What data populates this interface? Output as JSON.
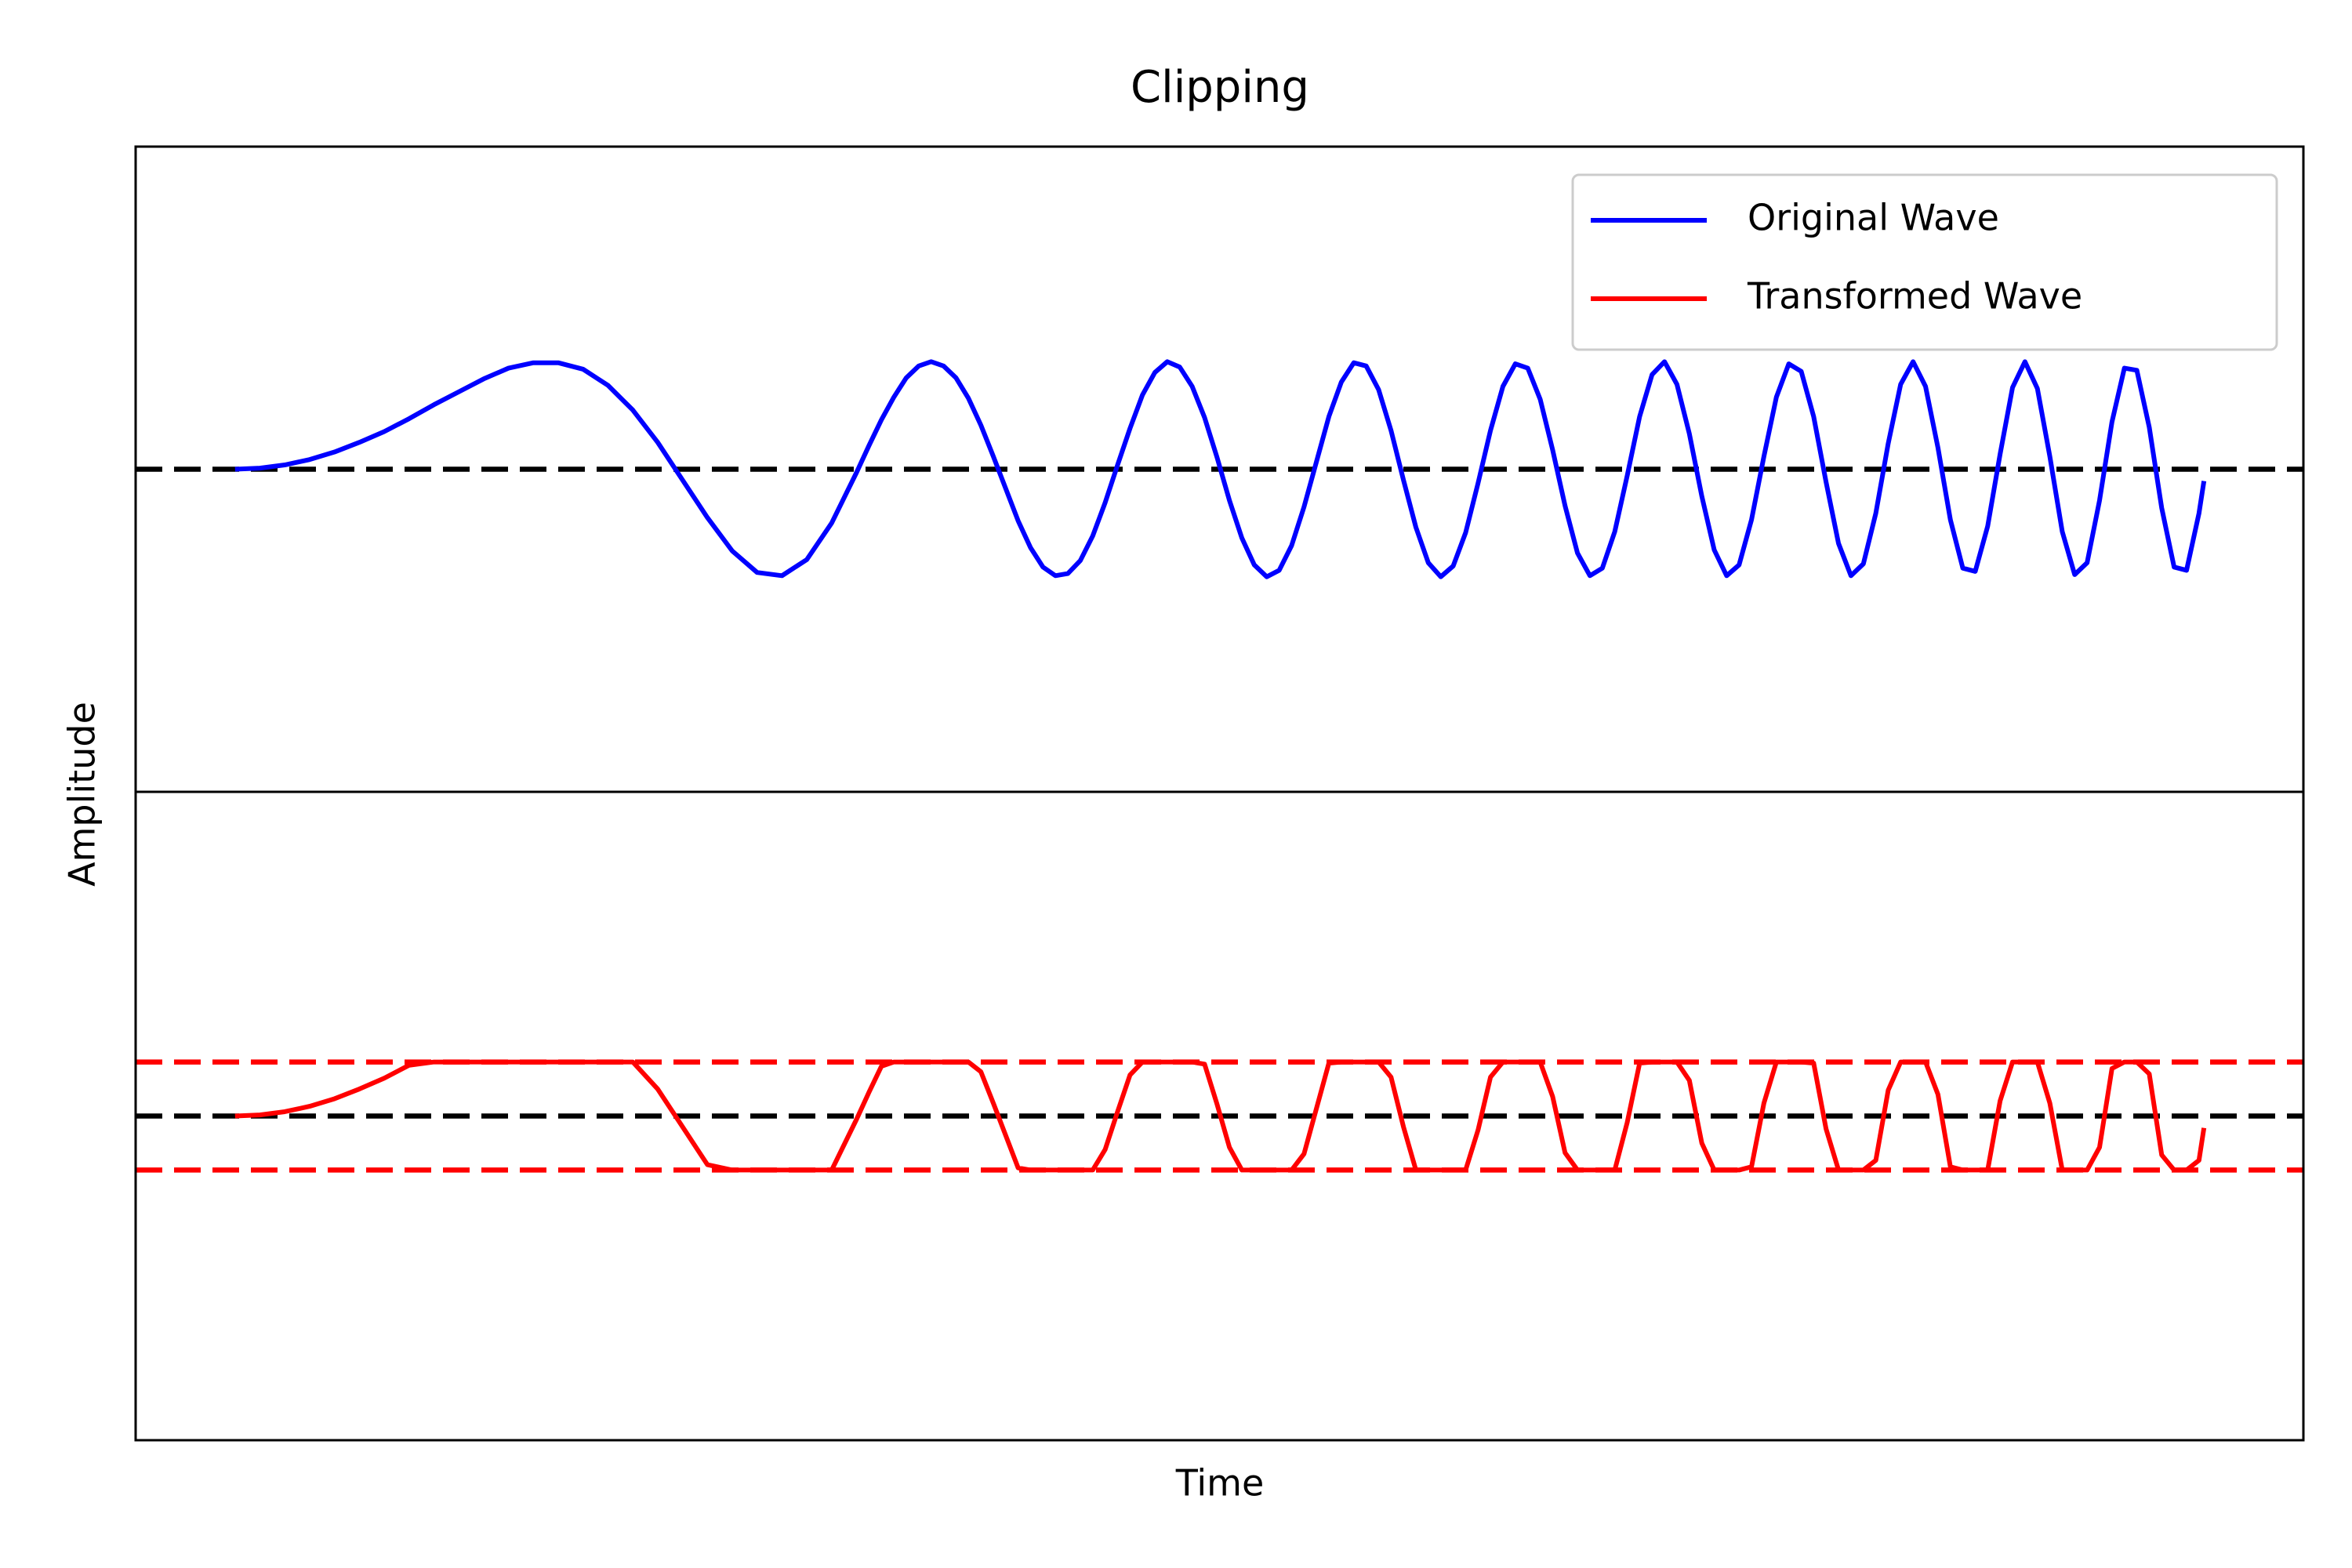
{
  "chart_data": [
    {
      "type": "line",
      "title": "Clipping",
      "ylabel": "Amplitude",
      "legend": "upper right",
      "x": [
        0,
        0.1,
        0.2,
        0.3,
        0.4,
        0.5,
        0.6,
        0.7,
        0.8,
        0.9,
        1.0,
        1.1,
        1.2,
        1.3,
        1.4,
        1.5,
        1.6,
        1.7,
        1.8,
        1.9,
        2.0,
        2.1,
        2.2,
        2.3,
        2.4,
        2.5,
        2.55,
        2.6,
        2.65,
        2.7,
        2.75,
        2.8,
        2.85,
        2.9,
        2.95,
        3.0,
        3.05,
        3.1,
        3.15,
        3.2,
        3.25,
        3.3,
        3.35,
        3.4,
        3.45,
        3.5,
        3.55,
        3.6,
        3.65,
        3.7,
        3.75,
        3.8,
        3.85,
        3.9,
        3.95,
        4.0,
        4.05,
        4.1,
        4.15,
        4.2,
        4.25,
        4.3,
        4.35,
        4.4,
        4.45,
        4.5,
        4.55,
        4.6,
        4.65,
        4.7,
        4.75,
        4.8,
        4.85,
        4.9,
        4.95,
        5.0,
        5.05,
        5.1,
        5.15,
        5.2,
        5.25,
        5.3,
        5.35,
        5.4,
        5.45,
        5.5,
        5.55,
        5.6,
        5.65,
        5.7,
        5.75,
        5.8,
        5.85,
        5.9,
        5.95,
        6.0,
        6.05,
        6.1,
        6.15,
        6.2,
        6.25,
        6.3,
        6.35,
        6.4,
        6.45,
        6.5,
        6.55,
        6.6,
        6.65,
        6.7,
        6.75,
        6.8,
        6.85,
        6.9,
        6.95,
        7.0,
        7.05,
        7.1,
        7.15,
        7.2,
        7.25,
        7.3,
        7.35,
        7.4,
        7.45,
        7.5,
        7.55,
        7.6,
        7.65,
        7.7,
        7.75,
        7.8,
        7.85,
        7.9,
        7.92
      ],
      "series": [
        {
          "name": "Original Wave",
          "color": "#0000ff",
          "values": [
            0,
            0.01,
            0.04,
            0.09,
            0.16,
            0.25,
            0.35,
            0.47,
            0.6,
            0.72,
            0.84,
            0.94,
            0.99,
            0.99,
            0.93,
            0.78,
            0.55,
            0.25,
            -0.1,
            -0.45,
            -0.76,
            -0.96,
            -0.99,
            -0.84,
            -0.5,
            -0.03,
            0.22,
            0.46,
            0.67,
            0.85,
            0.96,
            1.0,
            0.96,
            0.85,
            0.66,
            0.41,
            0.12,
            -0.18,
            -0.48,
            -0.73,
            -0.91,
            -0.99,
            -0.97,
            -0.85,
            -0.62,
            -0.31,
            0.04,
            0.38,
            0.69,
            0.9,
            1.0,
            0.95,
            0.77,
            0.48,
            0.11,
            -0.29,
            -0.64,
            -0.89,
            -1.0,
            -0.94,
            -0.71,
            -0.35,
            0.07,
            0.49,
            0.81,
            0.99,
            0.96,
            0.74,
            0.36,
            -0.1,
            -0.54,
            -0.87,
            -1.0,
            -0.9,
            -0.59,
            -0.13,
            0.36,
            0.77,
            0.98,
            0.94,
            0.65,
            0.18,
            -0.34,
            -0.78,
            -0.99,
            -0.92,
            -0.58,
            -0.06,
            0.49,
            0.88,
            1.0,
            0.79,
            0.33,
            -0.25,
            -0.75,
            -0.99,
            -0.89,
            -0.47,
            0.12,
            0.67,
            0.98,
            0.91,
            0.49,
            -0.12,
            -0.69,
            -0.99,
            -0.88,
            -0.41,
            0.24,
            0.79,
            1.0,
            0.77,
            0.2,
            -0.47,
            -0.92,
            -0.95,
            -0.53,
            0.14,
            0.76,
            1.0,
            0.75,
            0.12,
            -0.58,
            -0.98,
            -0.87,
            -0.29,
            0.44,
            0.94,
            0.92,
            0.39,
            -0.36,
            -0.91,
            -0.94,
            -0.41,
            -0.11
          ]
        }
      ],
      "hlines": [
        {
          "value": 0,
          "color": "#000000"
        }
      ],
      "xlim": [
        -0.4,
        8.32
      ],
      "ylim": [
        -3,
        3
      ]
    },
    {
      "type": "line",
      "xlabel": "Time",
      "x": [
        0,
        0.1,
        0.2,
        0.3,
        0.4,
        0.5,
        0.6,
        0.7,
        0.8,
        0.9,
        1.0,
        1.1,
        1.2,
        1.3,
        1.4,
        1.5,
        1.6,
        1.7,
        1.8,
        1.9,
        2.0,
        2.1,
        2.2,
        2.3,
        2.4,
        2.5,
        2.55,
        2.6,
        2.65,
        2.7,
        2.75,
        2.8,
        2.85,
        2.9,
        2.95,
        3.0,
        3.05,
        3.1,
        3.15,
        3.2,
        3.25,
        3.3,
        3.35,
        3.4,
        3.45,
        3.5,
        3.55,
        3.6,
        3.65,
        3.7,
        3.75,
        3.8,
        3.85,
        3.9,
        3.95,
        4.0,
        4.05,
        4.1,
        4.15,
        4.2,
        4.25,
        4.3,
        4.35,
        4.4,
        4.45,
        4.5,
        4.55,
        4.6,
        4.65,
        4.7,
        4.75,
        4.8,
        4.85,
        4.9,
        4.95,
        5.0,
        5.05,
        5.1,
        5.15,
        5.2,
        5.25,
        5.3,
        5.35,
        5.4,
        5.45,
        5.5,
        5.55,
        5.6,
        5.65,
        5.7,
        5.75,
        5.8,
        5.85,
        5.9,
        5.95,
        6.0,
        6.05,
        6.1,
        6.15,
        6.2,
        6.25,
        6.3,
        6.35,
        6.4,
        6.45,
        6.5,
        6.55,
        6.6,
        6.65,
        6.7,
        6.75,
        6.8,
        6.85,
        6.9,
        6.95,
        7.0,
        7.05,
        7.1,
        7.15,
        7.2,
        7.25,
        7.3,
        7.35,
        7.4,
        7.45,
        7.5,
        7.55,
        7.6,
        7.65,
        7.7,
        7.75,
        7.8,
        7.85,
        7.9,
        7.92
      ],
      "series": [
        {
          "name": "Transformed Wave",
          "color": "#ff0000",
          "values": [
            0,
            0.01,
            0.04,
            0.09,
            0.16,
            0.25,
            0.35,
            0.47,
            0.5,
            0.5,
            0.5,
            0.5,
            0.5,
            0.5,
            0.5,
            0.5,
            0.5,
            0.25,
            -0.1,
            -0.45,
            -0.5,
            -0.5,
            -0.5,
            -0.5,
            -0.5,
            -0.03,
            0.22,
            0.46,
            0.5,
            0.5,
            0.5,
            0.5,
            0.5,
            0.5,
            0.5,
            0.41,
            0.12,
            -0.18,
            -0.48,
            -0.5,
            -0.5,
            -0.5,
            -0.5,
            -0.5,
            -0.5,
            -0.31,
            0.04,
            0.38,
            0.5,
            0.5,
            0.5,
            0.5,
            0.5,
            0.48,
            0.11,
            -0.29,
            -0.5,
            -0.5,
            -0.5,
            -0.5,
            -0.5,
            -0.35,
            0.07,
            0.49,
            0.5,
            0.5,
            0.5,
            0.5,
            0.36,
            -0.1,
            -0.5,
            -0.5,
            -0.5,
            -0.5,
            -0.5,
            -0.13,
            0.36,
            0.5,
            0.5,
            0.5,
            0.5,
            0.18,
            -0.34,
            -0.5,
            -0.5,
            -0.5,
            -0.5,
            -0.06,
            0.49,
            0.5,
            0.5,
            0.5,
            0.33,
            -0.25,
            -0.5,
            -0.5,
            -0.5,
            -0.47,
            0.12,
            0.5,
            0.5,
            0.5,
            0.49,
            -0.12,
            -0.5,
            -0.5,
            -0.5,
            -0.41,
            0.24,
            0.5,
            0.5,
            0.5,
            0.2,
            -0.47,
            -0.5,
            -0.5,
            -0.5,
            0.14,
            0.5,
            0.5,
            0.5,
            0.12,
            -0.5,
            -0.5,
            -0.5,
            -0.29,
            0.44,
            0.5,
            0.5,
            0.39,
            -0.36,
            -0.5,
            -0.5,
            -0.41,
            -0.11
          ]
        }
      ],
      "hlines": [
        {
          "value": 0,
          "color": "#000000"
        },
        {
          "value": 0.5,
          "color": "#ff0000"
        },
        {
          "value": -0.5,
          "color": "#ff0000"
        }
      ],
      "xlim": [
        -0.4,
        8.32
      ],
      "ylim": [
        -3,
        3
      ]
    }
  ]
}
